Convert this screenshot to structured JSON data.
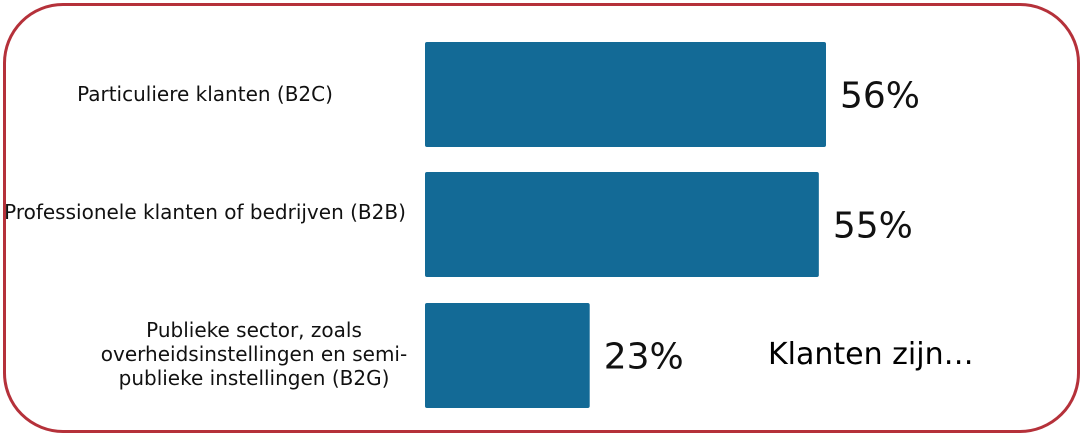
{
  "chart_data": {
    "type": "bar",
    "orientation": "horizontal",
    "title": "Klanten zijn…",
    "categories": [
      "Particuliere klanten (B2C)",
      "Professionele klanten of bedrijven (B2B)",
      "Publieke sector, zoals overheidsinstellingen en semi-publieke instellingen (B2G)"
    ],
    "values": [
      56,
      55,
      23
    ],
    "value_labels": [
      "56%",
      "55%",
      "23%"
    ],
    "xlim": [
      0,
      56
    ],
    "grid": false,
    "bar_color": "#136a96",
    "frame_color": "#b5313a"
  }
}
